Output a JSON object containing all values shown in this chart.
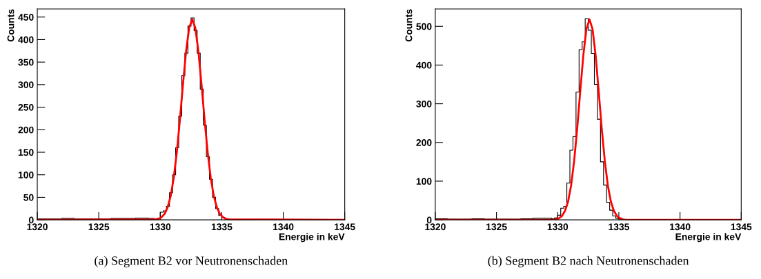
{
  "chart_data": [
    {
      "type": "histogram",
      "title": "(a) Segment B2 vor Neutronenschaden",
      "xlabel": "Energie in keV",
      "ylabel": "Counts",
      "color": "#000000",
      "bins": [
        1320,
        1321,
        1322,
        1323,
        1324,
        1325,
        1326,
        1327,
        1328,
        1329,
        1329.5,
        1329.75,
        1330,
        1330.25,
        1330.5,
        1330.75,
        1331,
        1331.25,
        1331.5,
        1331.75,
        1332,
        1332.25,
        1332.5,
        1332.75,
        1333,
        1333.25,
        1333.5,
        1333.75,
        1334,
        1334.25,
        1334.5,
        1334.75,
        1335,
        1335.25,
        1335.5,
        1335.75,
        1336,
        1337,
        1338,
        1339,
        1340,
        1341,
        1342,
        1343,
        1344,
        1345
      ],
      "values": [
        2,
        2,
        3,
        2,
        2,
        2,
        3,
        3,
        4,
        3,
        1,
        3,
        17,
        20,
        30,
        60,
        100,
        160,
        230,
        320,
        370,
        430,
        448,
        420,
        370,
        290,
        210,
        140,
        90,
        50,
        25,
        10,
        5,
        2,
        1,
        0,
        0,
        0,
        1,
        0,
        0,
        0,
        0,
        0,
        0
      ],
      "series": [
        {
          "type": "line",
          "color": "#ff0000",
          "x": [
            1320,
            1329.6,
            1329.85,
            1330.1,
            1330.35,
            1330.6,
            1330.85,
            1331.1,
            1331.35,
            1331.6,
            1331.85,
            1332.1,
            1332.35,
            1332.6,
            1332.85,
            1333.1,
            1333.35,
            1333.6,
            1333.85,
            1334.1,
            1334.35,
            1334.6,
            1334.85,
            1335.1,
            1335.35,
            1335.6,
            1345
          ],
          "values": [
            0,
            1,
            2,
            6,
            13,
            28,
            53,
            94,
            151,
            223,
            302,
            374,
            426,
            445,
            426,
            374,
            302,
            223,
            151,
            94,
            53,
            28,
            13,
            6,
            2,
            1,
            0
          ]
        }
      ],
      "xlim": [
        1320,
        1345
      ],
      "xticks": [
        1320,
        1325,
        1330,
        1335,
        1340,
        1345
      ],
      "ylim": [
        0,
        468
      ],
      "yticks": [
        0,
        50,
        100,
        150,
        200,
        250,
        300,
        350,
        400,
        450
      ],
      "grid": false,
      "legend": false
    },
    {
      "type": "histogram",
      "title": "(b) Segment B2 nach Neutronenschaden",
      "xlabel": "Energie in keV",
      "ylabel": "Counts",
      "color": "#000000",
      "bins": [
        1320,
        1321,
        1322,
        1323,
        1324,
        1325,
        1326,
        1327,
        1328,
        1329,
        1329.5,
        1329.75,
        1330,
        1330.25,
        1330.5,
        1330.75,
        1331,
        1331.25,
        1331.5,
        1331.75,
        1332,
        1332.25,
        1332.5,
        1332.75,
        1333,
        1333.25,
        1333.5,
        1333.75,
        1334,
        1334.25,
        1334.5,
        1334.75,
        1335,
        1335.25,
        1335.5,
        1335.75,
        1336,
        1337,
        1338,
        1339,
        1340,
        1341,
        1342,
        1343,
        1344,
        1345
      ],
      "values": [
        3,
        2,
        2,
        3,
        2,
        2,
        2,
        3,
        4,
        4,
        3,
        5,
        12,
        30,
        35,
        95,
        180,
        215,
        330,
        440,
        460,
        520,
        490,
        430,
        350,
        260,
        150,
        90,
        45,
        25,
        10,
        4,
        2,
        1,
        0,
        0,
        0,
        0,
        0,
        0,
        0,
        0,
        0,
        0,
        0
      ],
      "series": [
        {
          "type": "line",
          "color": "#ff0000",
          "x": [
            1320,
            1329.6,
            1329.85,
            1330.1,
            1330.35,
            1330.6,
            1330.85,
            1331.1,
            1331.35,
            1331.6,
            1331.85,
            1332.1,
            1332.35,
            1332.6,
            1332.85,
            1333.1,
            1333.35,
            1333.6,
            1333.85,
            1334.1,
            1334.35,
            1334.6,
            1334.85,
            1335.1,
            1335.35,
            1335.6,
            1345
          ],
          "values": [
            0,
            0,
            1,
            4,
            10,
            23,
            47,
            89,
            153,
            237,
            334,
            426,
            493,
            518,
            493,
            426,
            334,
            237,
            153,
            89,
            47,
            23,
            10,
            4,
            1,
            0,
            0
          ]
        }
      ],
      "xlim": [
        1320,
        1345
      ],
      "xticks": [
        1320,
        1325,
        1330,
        1335,
        1340,
        1345
      ],
      "ylim": [
        0,
        545
      ],
      "yticks": [
        0,
        100,
        200,
        300,
        400,
        500
      ],
      "grid": false,
      "legend": false
    }
  ]
}
